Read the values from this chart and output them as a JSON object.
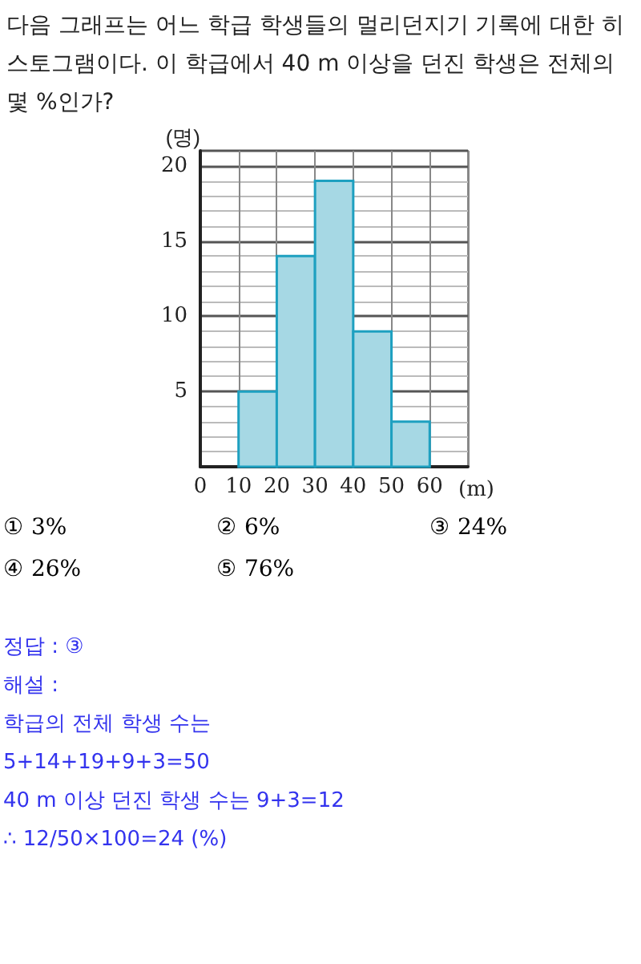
{
  "chart_data": {
    "type": "histogram",
    "title": "다음 그래프는 어느 학급 학생들의 멀리던지기 기록에 대한 히스토그램이다. 이 학급에서 40 m  이상을 던진 학생은 전체의 몇 %인가?",
    "xlabel": "(m)",
    "ylabel": "(명)",
    "bins": [
      10,
      20,
      30,
      40,
      50,
      60
    ],
    "values": [
      5,
      14,
      19,
      9,
      3
    ],
    "color": "#a6d8e4",
    "xlim": [
      0,
      70
    ],
    "xticks": [
      0,
      10,
      20,
      30,
      40,
      50,
      60
    ],
    "ylim": [
      0,
      21
    ],
    "yticks": [
      5,
      10,
      15,
      20
    ],
    "grid": true,
    "annotations": [
      "① 3%",
      "② 6%",
      "③ 24%",
      "④ 26%",
      "⑤ 76%",
      "정답 : ③",
      "해설 :",
      "학급의 전체 학생 수는",
      "5+14+19+9+3=50",
      "40 m  이상 던진 학생 수는 9+3=12",
      "∴ 12/50×100=24 (%)"
    ]
  }
}
